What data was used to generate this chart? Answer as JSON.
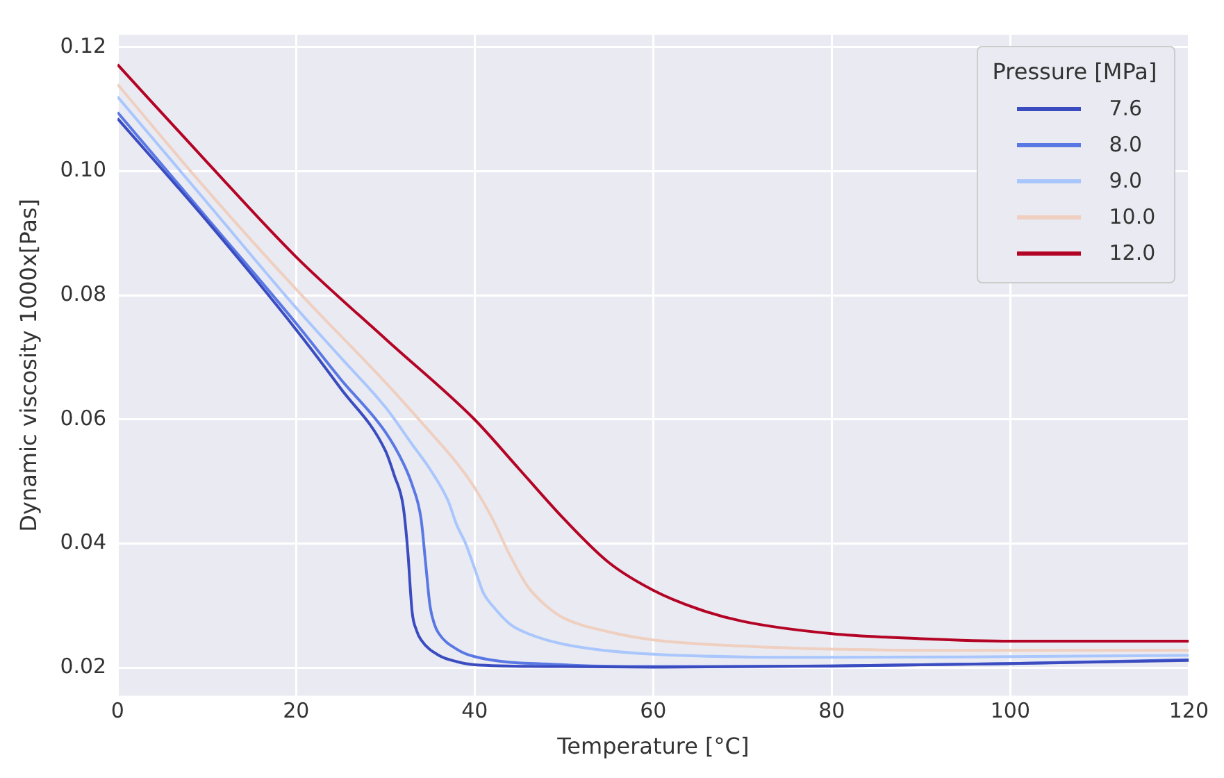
{
  "chart_data": {
    "type": "line",
    "xlabel": "Temperature [°C]",
    "ylabel": "Dynamic viscosity 1000x[Pas]",
    "legend_title": "Pressure [MPa]",
    "legend": "top right",
    "grid": true,
    "marker": "none",
    "line_style": "solid",
    "xlim": [
      0,
      120
    ],
    "xticks": [
      0,
      20,
      40,
      60,
      80,
      100,
      120
    ],
    "ylim": [
      0.0155,
      0.122
    ],
    "yticks": [
      0.02,
      0.04,
      0.06,
      0.08,
      {
        "value": 0.1,
        "label": "0.10"
      },
      0.12
    ],
    "series": [
      {
        "name": "7.6",
        "color": "#3b4cc0",
        "x": [
          0,
          10,
          20,
          25,
          30,
          31,
          32,
          32.5,
          33,
          33.5,
          34,
          36,
          38,
          40,
          50,
          60,
          80,
          100,
          120
        ],
        "values": [
          0.1085,
          0.092,
          0.0745,
          0.065,
          0.055,
          0.051,
          0.046,
          0.039,
          0.029,
          0.026,
          0.0245,
          0.022,
          0.021,
          0.0205,
          0.0202,
          0.0201,
          0.0203,
          0.0207,
          0.0212
        ]
      },
      {
        "name": "8.0",
        "color": "#5a78e4",
        "x": [
          0,
          10,
          20,
          25,
          30,
          32,
          33,
          34,
          34.5,
          35,
          35.5,
          36,
          38,
          40,
          50,
          60,
          80,
          100,
          120
        ],
        "values": [
          0.1095,
          0.0925,
          0.0755,
          0.0665,
          0.058,
          0.053,
          0.0495,
          0.044,
          0.037,
          0.03,
          0.027,
          0.0255,
          0.023,
          0.0218,
          0.0205,
          0.0202,
          0.0203,
          0.0207,
          0.0213
        ]
      },
      {
        "name": "9.0",
        "color": "#aac7fd",
        "x": [
          0,
          10,
          20,
          25,
          30,
          33,
          35,
          37,
          38,
          39,
          40,
          41,
          42,
          44,
          46,
          50,
          60,
          80,
          100,
          120
        ],
        "values": [
          0.112,
          0.095,
          0.078,
          0.07,
          0.062,
          0.056,
          0.052,
          0.047,
          0.043,
          0.04,
          0.036,
          0.032,
          0.03,
          0.027,
          0.0255,
          0.0238,
          0.0222,
          0.0217,
          0.0218,
          0.022
        ]
      },
      {
        "name": "10.0",
        "color": "#efcfbf",
        "x": [
          0,
          10,
          20,
          30,
          35,
          38,
          40,
          42,
          44,
          46,
          48,
          50,
          55,
          60,
          70,
          80,
          100,
          120
        ],
        "values": [
          0.114,
          0.097,
          0.081,
          0.066,
          0.058,
          0.053,
          0.049,
          0.044,
          0.038,
          0.033,
          0.03,
          0.028,
          0.0258,
          0.0245,
          0.0235,
          0.023,
          0.0228,
          0.0228
        ]
      },
      {
        "name": "12.0",
        "color": "#b40426",
        "x": [
          0,
          10,
          20,
          30,
          40,
          45,
          50,
          55,
          60,
          65,
          70,
          80,
          90,
          100,
          120
        ],
        "values": [
          0.1172,
          0.1015,
          0.0862,
          0.073,
          0.06,
          0.052,
          0.044,
          0.037,
          0.0325,
          0.0295,
          0.0275,
          0.0255,
          0.0247,
          0.0243,
          0.0243
        ]
      }
    ]
  }
}
